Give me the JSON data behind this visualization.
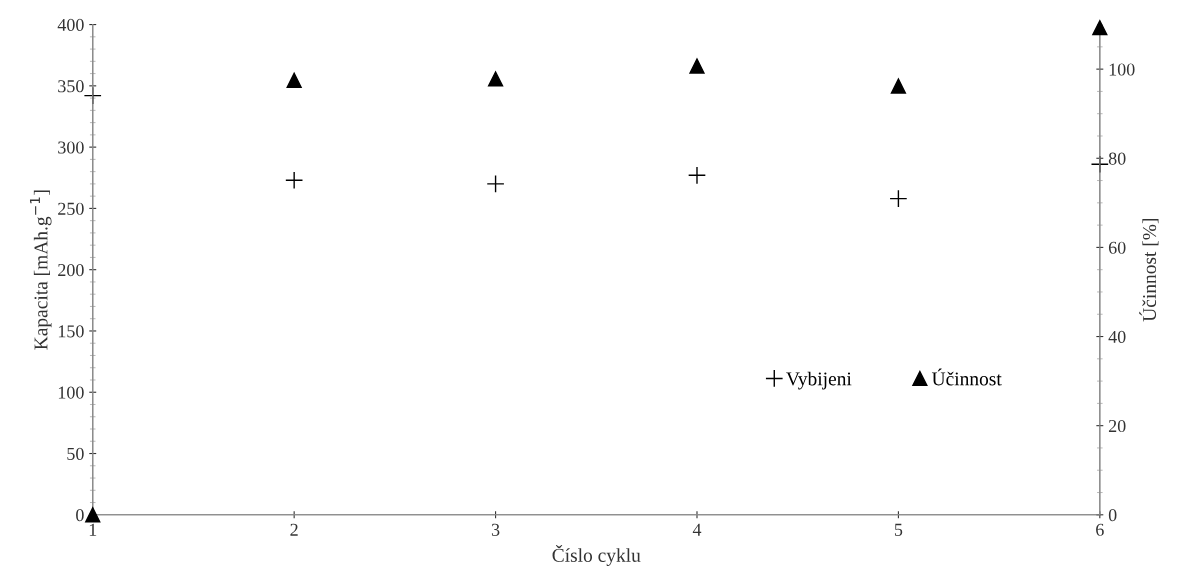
{
  "chart_data": {
    "type": "scatter",
    "xlabel": "Číslo cyklu",
    "ylabel": "Kapacita [mAh.g$^{−1}$]",
    "y2label": "Účinnost [%]",
    "x": [
      1,
      2,
      3,
      4,
      5,
      6
    ],
    "series": [
      {
        "name": "Vybijeni",
        "color": "#000000",
        "marker": "cross",
        "values": [
          342,
          273,
          270,
          277,
          258,
          286
        ]
      },
      {
        "name": "Účinnost",
        "color": "#000000",
        "marker": "triangle",
        "axis": "y2",
        "values": [
          0,
          97.5,
          97.8,
          100.7,
          96.2,
          109.3
        ]
      }
    ],
    "xlim": [
      1,
      6
    ],
    "xticks": [
      1,
      2,
      3,
      4,
      5,
      6
    ],
    "ylim": [
      0,
      400
    ],
    "yticks": [
      0,
      50,
      100,
      150,
      200,
      250,
      300,
      350,
      400
    ],
    "y2lim": [
      0,
      110
    ],
    "y2ticks": [
      0,
      20,
      40,
      60,
      80,
      100
    ],
    "grid": false,
    "legend": "bottom right"
  }
}
